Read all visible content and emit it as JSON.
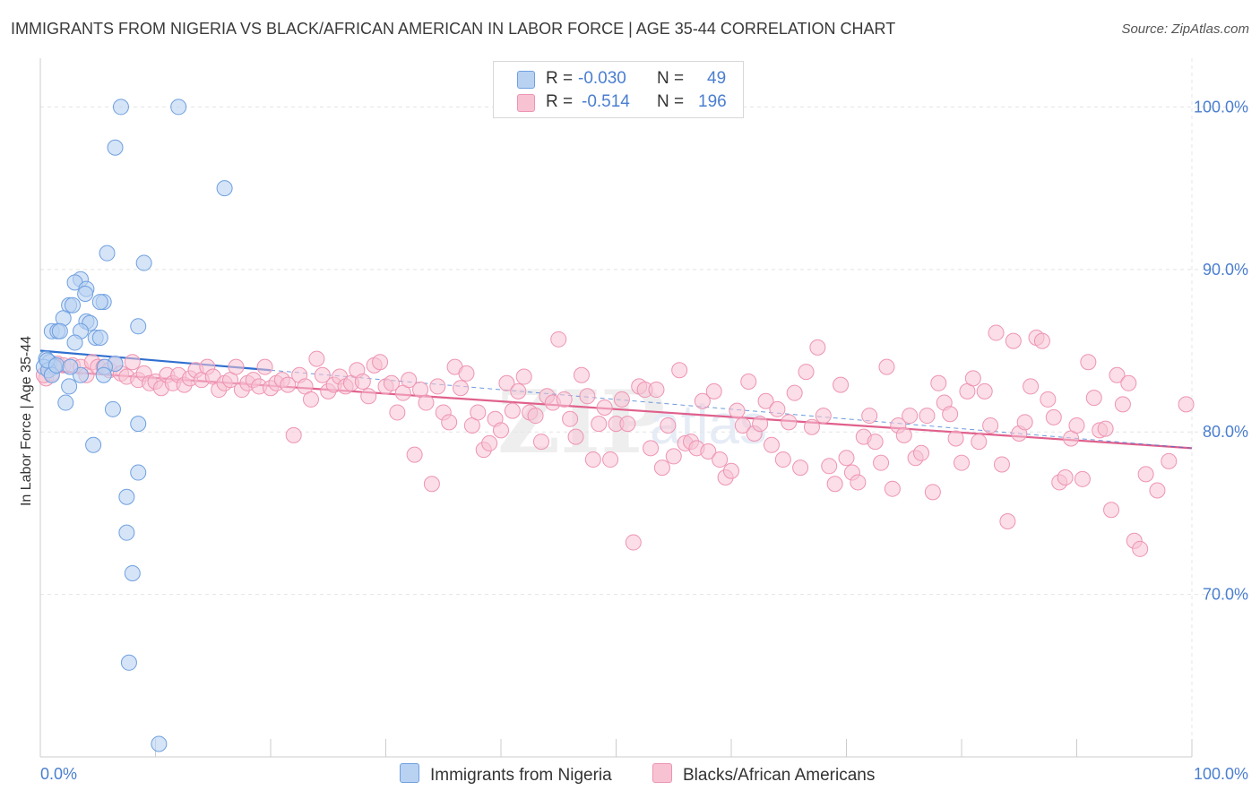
{
  "title": "IMMIGRANTS FROM NIGERIA VS BLACK/AFRICAN AMERICAN IN LABOR FORCE | AGE 35-44 CORRELATION CHART",
  "source": "Source: ZipAtlas.com",
  "colors": {
    "blue_fill": "#b9d2f2",
    "blue_stroke": "#6fa0e0",
    "blue_line": "#2f6fd0",
    "pink_fill": "#f7c3d3",
    "pink_stroke": "#ee94b2",
    "pink_line": "#e0608c",
    "grid": "#e4e4e4",
    "axis_text": "#4a7ed0"
  },
  "stats": {
    "r_label": "R =",
    "n_label": "N =",
    "rows": [
      {
        "r": "-0.030",
        "n": "49"
      },
      {
        "r": "-0.514",
        "n": "196"
      }
    ]
  },
  "chart_data": {
    "type": "scatter",
    "title": "IMMIGRANTS FROM NIGERIA VS BLACK/AFRICAN AMERICAN IN LABOR FORCE | AGE 35-44 CORRELATION CHART",
    "xlabel": "",
    "ylabel": "In Labor Force | Age 35-44",
    "xlim": [
      0,
      100
    ],
    "ylim": [
      60,
      103
    ],
    "x_tick_labels": [
      "0.0%",
      "100.0%"
    ],
    "y_ticks": [
      70,
      80,
      90,
      100
    ],
    "y_tick_labels": [
      "70.0%",
      "80.0%",
      "90.0%",
      "100.0%"
    ],
    "grid": true,
    "legend_position": "bottom",
    "series": [
      {
        "name": "Immigrants from Nigeria",
        "color": "#b9d2f2",
        "trend": {
          "x": [
            0,
            20
          ],
          "y": [
            85.0,
            83.8
          ]
        },
        "points": [
          [
            7.0,
            100.0
          ],
          [
            12.0,
            100.0
          ],
          [
            6.5,
            97.5
          ],
          [
            16.0,
            95.0
          ],
          [
            5.8,
            91.0
          ],
          [
            9.0,
            90.4
          ],
          [
            3.5,
            89.4
          ],
          [
            3.0,
            89.2
          ],
          [
            4.0,
            88.8
          ],
          [
            3.9,
            88.5
          ],
          [
            2.5,
            87.8
          ],
          [
            2.8,
            87.8
          ],
          [
            5.5,
            88.0
          ],
          [
            5.2,
            88.0
          ],
          [
            2.0,
            87.0
          ],
          [
            4.0,
            86.8
          ],
          [
            4.3,
            86.7
          ],
          [
            8.5,
            86.5
          ],
          [
            1.0,
            86.2
          ],
          [
            1.5,
            86.2
          ],
          [
            1.7,
            86.2
          ],
          [
            3.5,
            86.2
          ],
          [
            4.8,
            85.8
          ],
          [
            5.2,
            85.8
          ],
          [
            3.0,
            85.5
          ],
          [
            0.5,
            84.5
          ],
          [
            0.8,
            84.3
          ],
          [
            1.2,
            84.0
          ],
          [
            6.5,
            84.2
          ],
          [
            0.3,
            84.0
          ],
          [
            5.6,
            84.0
          ],
          [
            0.7,
            83.8
          ],
          [
            1.0,
            83.5
          ],
          [
            3.5,
            83.5
          ],
          [
            5.5,
            83.5
          ],
          [
            2.5,
            82.8
          ],
          [
            2.2,
            81.8
          ],
          [
            6.3,
            81.4
          ],
          [
            8.5,
            80.5
          ],
          [
            4.6,
            79.2
          ],
          [
            8.5,
            77.5
          ],
          [
            7.5,
            76.0
          ],
          [
            7.5,
            73.8
          ],
          [
            8.0,
            71.3
          ],
          [
            7.7,
            65.8
          ],
          [
            10.3,
            60.8
          ],
          [
            0.6,
            84.4
          ],
          [
            1.4,
            84.1
          ],
          [
            2.6,
            84.0
          ]
        ]
      },
      {
        "name": "Blacks/African Americans",
        "color": "#f7c3d3",
        "trend": {
          "x": [
            0,
            100
          ],
          "y": [
            83.8,
            79.0
          ]
        },
        "points": [
          [
            0.5,
            83.3
          ],
          [
            0.3,
            83.5
          ],
          [
            1.0,
            83.6
          ],
          [
            1.5,
            84.2
          ],
          [
            2.0,
            84.1
          ],
          [
            2.8,
            84.1
          ],
          [
            3.5,
            84.0
          ],
          [
            4.0,
            83.5
          ],
          [
            4.5,
            84.3
          ],
          [
            5.0,
            84.0
          ],
          [
            5.5,
            84.0
          ],
          [
            6.0,
            83.8
          ],
          [
            6.5,
            84.2
          ],
          [
            7.0,
            83.6
          ],
          [
            7.5,
            83.4
          ],
          [
            8.0,
            84.3
          ],
          [
            8.5,
            83.2
          ],
          [
            9.0,
            83.6
          ],
          [
            9.5,
            83.0
          ],
          [
            10.0,
            83.1
          ],
          [
            10.5,
            82.7
          ],
          [
            11.0,
            83.5
          ],
          [
            11.5,
            83.0
          ],
          [
            12.0,
            83.5
          ],
          [
            12.5,
            82.9
          ],
          [
            13.0,
            83.3
          ],
          [
            13.5,
            83.8
          ],
          [
            14.0,
            83.2
          ],
          [
            14.5,
            84.0
          ],
          [
            15.0,
            83.4
          ],
          [
            15.5,
            82.6
          ],
          [
            16.0,
            83.0
          ],
          [
            16.5,
            83.2
          ],
          [
            17.0,
            84.0
          ],
          [
            17.5,
            82.6
          ],
          [
            18.0,
            83.0
          ],
          [
            18.5,
            83.2
          ],
          [
            19.0,
            82.8
          ],
          [
            19.5,
            84.0
          ],
          [
            20.0,
            82.7
          ],
          [
            20.5,
            83.0
          ],
          [
            21.0,
            83.2
          ],
          [
            21.5,
            82.9
          ],
          [
            22.0,
            79.8
          ],
          [
            22.5,
            83.5
          ],
          [
            23.0,
            82.8
          ],
          [
            23.5,
            82.0
          ],
          [
            24.0,
            84.5
          ],
          [
            24.5,
            83.5
          ],
          [
            25.0,
            82.5
          ],
          [
            25.5,
            82.9
          ],
          [
            26.0,
            83.4
          ],
          [
            26.5,
            82.8
          ],
          [
            27.0,
            83.0
          ],
          [
            27.5,
            83.8
          ],
          [
            28.0,
            83.1
          ],
          [
            28.5,
            82.2
          ],
          [
            29.0,
            84.1
          ],
          [
            29.5,
            84.3
          ],
          [
            30.0,
            82.8
          ],
          [
            30.5,
            83.0
          ],
          [
            31.0,
            81.2
          ],
          [
            31.5,
            82.4
          ],
          [
            32.0,
            83.2
          ],
          [
            32.5,
            78.6
          ],
          [
            33.0,
            82.6
          ],
          [
            33.5,
            81.8
          ],
          [
            34.0,
            76.8
          ],
          [
            34.5,
            82.8
          ],
          [
            35.0,
            81.2
          ],
          [
            35.5,
            80.6
          ],
          [
            36.0,
            84.0
          ],
          [
            36.5,
            82.7
          ],
          [
            37.0,
            83.6
          ],
          [
            37.5,
            80.4
          ],
          [
            38.0,
            81.2
          ],
          [
            38.5,
            78.9
          ],
          [
            39.0,
            79.3
          ],
          [
            39.5,
            80.8
          ],
          [
            40.0,
            80.1
          ],
          [
            40.5,
            83.0
          ],
          [
            41.0,
            81.3
          ],
          [
            41.5,
            82.5
          ],
          [
            42.0,
            83.4
          ],
          [
            42.5,
            81.2
          ],
          [
            43.0,
            81.0
          ],
          [
            43.5,
            79.4
          ],
          [
            44.0,
            82.2
          ],
          [
            44.5,
            81.8
          ],
          [
            45.0,
            85.7
          ],
          [
            45.5,
            82.0
          ],
          [
            46.0,
            80.8
          ],
          [
            46.5,
            79.7
          ],
          [
            47.0,
            83.5
          ],
          [
            47.5,
            82.2
          ],
          [
            48.0,
            78.3
          ],
          [
            48.5,
            80.5
          ],
          [
            49.0,
            81.5
          ],
          [
            49.5,
            78.3
          ],
          [
            50.0,
            80.5
          ],
          [
            50.5,
            82.0
          ],
          [
            51.0,
            80.5
          ],
          [
            51.5,
            73.2
          ],
          [
            52.0,
            82.8
          ],
          [
            52.5,
            82.6
          ],
          [
            53.0,
            79.0
          ],
          [
            53.5,
            82.6
          ],
          [
            54.0,
            77.8
          ],
          [
            54.5,
            80.4
          ],
          [
            55.0,
            78.5
          ],
          [
            55.5,
            83.8
          ],
          [
            56.0,
            79.3
          ],
          [
            56.5,
            79.4
          ],
          [
            57.0,
            79.0
          ],
          [
            57.5,
            81.9
          ],
          [
            58.0,
            78.8
          ],
          [
            58.5,
            82.5
          ],
          [
            59.0,
            78.3
          ],
          [
            59.5,
            77.2
          ],
          [
            60.0,
            77.6
          ],
          [
            60.5,
            81.3
          ],
          [
            61.0,
            80.4
          ],
          [
            61.5,
            83.1
          ],
          [
            62.0,
            79.9
          ],
          [
            62.5,
            80.5
          ],
          [
            63.0,
            81.9
          ],
          [
            63.5,
            79.2
          ],
          [
            64.0,
            81.4
          ],
          [
            64.5,
            78.3
          ],
          [
            65.0,
            80.6
          ],
          [
            65.5,
            82.4
          ],
          [
            66.0,
            77.8
          ],
          [
            66.5,
            83.7
          ],
          [
            67.0,
            80.3
          ],
          [
            67.5,
            85.2
          ],
          [
            68.0,
            81.0
          ],
          [
            68.5,
            77.9
          ],
          [
            69.0,
            76.8
          ],
          [
            69.5,
            82.9
          ],
          [
            70.0,
            78.4
          ],
          [
            70.5,
            77.5
          ],
          [
            71.0,
            76.9
          ],
          [
            71.5,
            79.7
          ],
          [
            72.0,
            81.0
          ],
          [
            72.5,
            79.4
          ],
          [
            73.0,
            78.1
          ],
          [
            73.5,
            84.0
          ],
          [
            74.0,
            76.5
          ],
          [
            74.5,
            80.4
          ],
          [
            75.0,
            79.8
          ],
          [
            75.5,
            81.0
          ],
          [
            76.0,
            78.4
          ],
          [
            76.5,
            78.7
          ],
          [
            77.0,
            81.0
          ],
          [
            77.5,
            76.3
          ],
          [
            78.0,
            83.0
          ],
          [
            78.5,
            81.8
          ],
          [
            79.0,
            81.1
          ],
          [
            79.5,
            79.6
          ],
          [
            80.0,
            78.1
          ],
          [
            80.5,
            82.5
          ],
          [
            81.0,
            83.3
          ],
          [
            81.5,
            79.4
          ],
          [
            82.0,
            82.5
          ],
          [
            82.5,
            80.4
          ],
          [
            83.0,
            86.1
          ],
          [
            83.5,
            78.0
          ],
          [
            84.0,
            74.5
          ],
          [
            84.5,
            85.6
          ],
          [
            85.0,
            79.9
          ],
          [
            85.5,
            80.6
          ],
          [
            86.0,
            82.8
          ],
          [
            86.5,
            85.8
          ],
          [
            87.0,
            85.6
          ],
          [
            87.5,
            82.0
          ],
          [
            88.0,
            80.9
          ],
          [
            88.5,
            76.9
          ],
          [
            89.0,
            77.2
          ],
          [
            89.5,
            79.6
          ],
          [
            90.0,
            80.4
          ],
          [
            90.5,
            77.1
          ],
          [
            91.0,
            84.3
          ],
          [
            91.5,
            82.1
          ],
          [
            92.0,
            80.1
          ],
          [
            92.5,
            80.2
          ],
          [
            93.0,
            75.2
          ],
          [
            93.5,
            83.5
          ],
          [
            94.0,
            81.7
          ],
          [
            94.5,
            83.0
          ],
          [
            95.0,
            73.3
          ],
          [
            95.5,
            72.8
          ],
          [
            96.0,
            77.4
          ],
          [
            97.0,
            76.4
          ],
          [
            98.0,
            78.2
          ],
          [
            99.5,
            81.7
          ],
          [
            1.2,
            84.1
          ]
        ]
      }
    ]
  },
  "legend": {
    "items": [
      {
        "label": "Immigrants from Nigeria"
      },
      {
        "label": "Blacks/African Americans"
      }
    ]
  }
}
